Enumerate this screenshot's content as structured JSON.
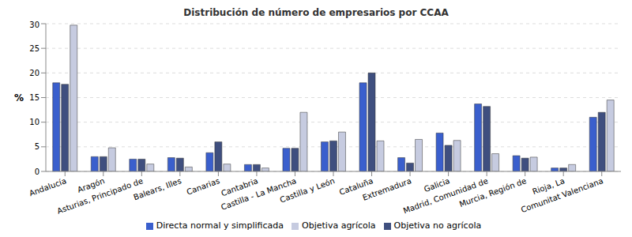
{
  "chart_data": {
    "type": "bar",
    "title": "Distribución de número de empresarios por CCAA",
    "y_label": "%",
    "categories": [
      "Andalucía",
      "Aragón",
      "Asturias, Principado de",
      "Balears, Illes",
      "Canarias",
      "Cantabria",
      "Castilla - La Mancha",
      "Castilla y León",
      "Cataluña",
      "Extremadura",
      "Galicia",
      "Madrid, Comunidad de",
      "Murcia, Región de",
      "Rioja, La",
      "Comunitat Valenciana"
    ],
    "series": [
      {
        "name": "Directa normal y simplificada",
        "color": "#3a5fcd",
        "values": [
          18.0,
          3.0,
          2.5,
          2.8,
          3.8,
          1.4,
          4.7,
          6.0,
          18.0,
          2.8,
          7.8,
          13.7,
          3.2,
          0.7,
          11.0
        ]
      },
      {
        "name": "Objetiva no agrícola",
        "color": "#3f4f7f",
        "values": [
          17.7,
          3.0,
          2.5,
          2.7,
          6.0,
          1.4,
          4.7,
          6.2,
          20.0,
          1.7,
          5.3,
          13.2,
          2.7,
          0.7,
          12.0
        ]
      },
      {
        "name": "Objetiva agrícola",
        "color": "#c6cbe0",
        "values": [
          29.7,
          4.8,
          1.5,
          0.9,
          1.5,
          0.7,
          12.0,
          8.0,
          6.2,
          6.5,
          6.3,
          3.6,
          2.9,
          1.4,
          14.5
        ]
      }
    ],
    "ylim": [
      0,
      30
    ],
    "yticks": [
      0,
      5,
      10,
      15,
      20,
      25,
      30
    ],
    "grid": true,
    "legend": "bottom"
  }
}
